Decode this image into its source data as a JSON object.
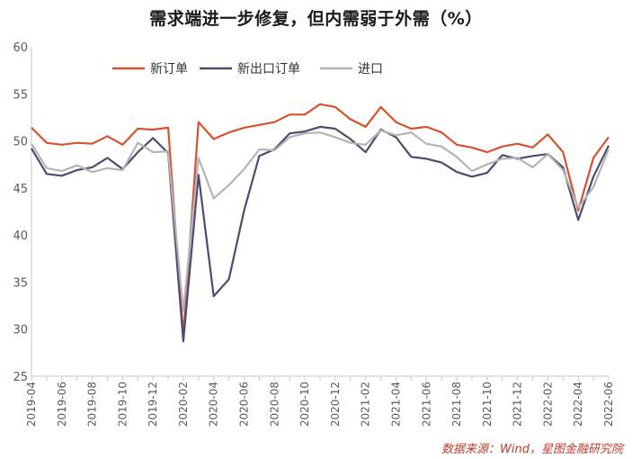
{
  "chart_data": {
    "type": "line",
    "title": "需求端进一步修复，但内需弱于外需（%）",
    "ylim": [
      25,
      60
    ],
    "yticks": [
      25,
      30,
      35,
      40,
      45,
      50,
      55,
      60
    ],
    "grid": false,
    "legend_position": "top-left",
    "x": [
      "2019-04",
      "2019-05",
      "2019-06",
      "2019-07",
      "2019-08",
      "2019-09",
      "2019-10",
      "2019-11",
      "2019-12",
      "2020-01",
      "2020-02",
      "2020-03",
      "2020-04",
      "2020-05",
      "2020-06",
      "2020-07",
      "2020-08",
      "2020-09",
      "2020-10",
      "2020-11",
      "2020-12",
      "2021-01",
      "2021-02",
      "2021-03",
      "2021-04",
      "2021-05",
      "2021-06",
      "2021-07",
      "2021-08",
      "2021-09",
      "2021-10",
      "2021-11",
      "2021-12",
      "2022-01",
      "2022-02",
      "2022-03",
      "2022-04",
      "2022-05",
      "2022-06"
    ],
    "xtick_labels": [
      "2019-04",
      "2019-06",
      "2019-08",
      "2019-10",
      "2019-12",
      "2020-02",
      "2020-04",
      "2020-06",
      "2020-08",
      "2020-10",
      "2020-12",
      "2021-02",
      "2021-04",
      "2021-06",
      "2021-08",
      "2021-10",
      "2021-12",
      "2022-02",
      "2022-04",
      "2022-06"
    ],
    "series": [
      {
        "name": "新订单",
        "color": "#d5522f",
        "values": [
          51.4,
          49.8,
          49.6,
          49.8,
          49.7,
          50.5,
          49.6,
          51.3,
          51.2,
          51.4,
          29.3,
          52.0,
          50.2,
          50.9,
          51.4,
          51.7,
          52.0,
          52.8,
          52.8,
          53.9,
          53.6,
          52.3,
          51.5,
          53.6,
          52.0,
          51.3,
          51.5,
          50.9,
          49.6,
          49.3,
          48.8,
          49.4,
          49.7,
          49.3,
          50.7,
          48.8,
          42.6,
          48.2,
          50.4
        ]
      },
      {
        "name": "新出口订单",
        "color": "#4c4c72",
        "values": [
          49.2,
          46.5,
          46.3,
          46.9,
          47.2,
          48.2,
          47.0,
          48.8,
          50.3,
          48.7,
          28.7,
          46.4,
          33.5,
          35.3,
          42.6,
          48.4,
          49.1,
          50.8,
          51.0,
          51.5,
          51.3,
          50.2,
          48.8,
          51.2,
          50.4,
          48.3,
          48.1,
          47.7,
          46.7,
          46.2,
          46.6,
          48.5,
          48.1,
          48.4,
          48.6,
          47.2,
          41.6,
          46.2,
          49.5
        ]
      },
      {
        "name": "进口",
        "color": "#b4b4b4",
        "values": [
          49.7,
          47.1,
          46.8,
          47.4,
          46.7,
          47.1,
          46.9,
          49.8,
          48.8,
          48.9,
          31.9,
          48.2,
          43.9,
          45.3,
          47.0,
          49.1,
          49.0,
          50.4,
          50.8,
          50.9,
          50.4,
          49.8,
          49.6,
          51.1,
          50.6,
          50.9,
          49.7,
          49.4,
          48.3,
          46.8,
          47.5,
          48.1,
          48.2,
          47.2,
          48.6,
          46.9,
          42.9,
          45.1,
          49.1
        ]
      }
    ]
  },
  "source_text": "数据来源：Wind，星图金融研究院",
  "colors": {
    "axis": "#c9c9c9",
    "tick_text": "#5a5a5a",
    "source": "#c0392b"
  }
}
